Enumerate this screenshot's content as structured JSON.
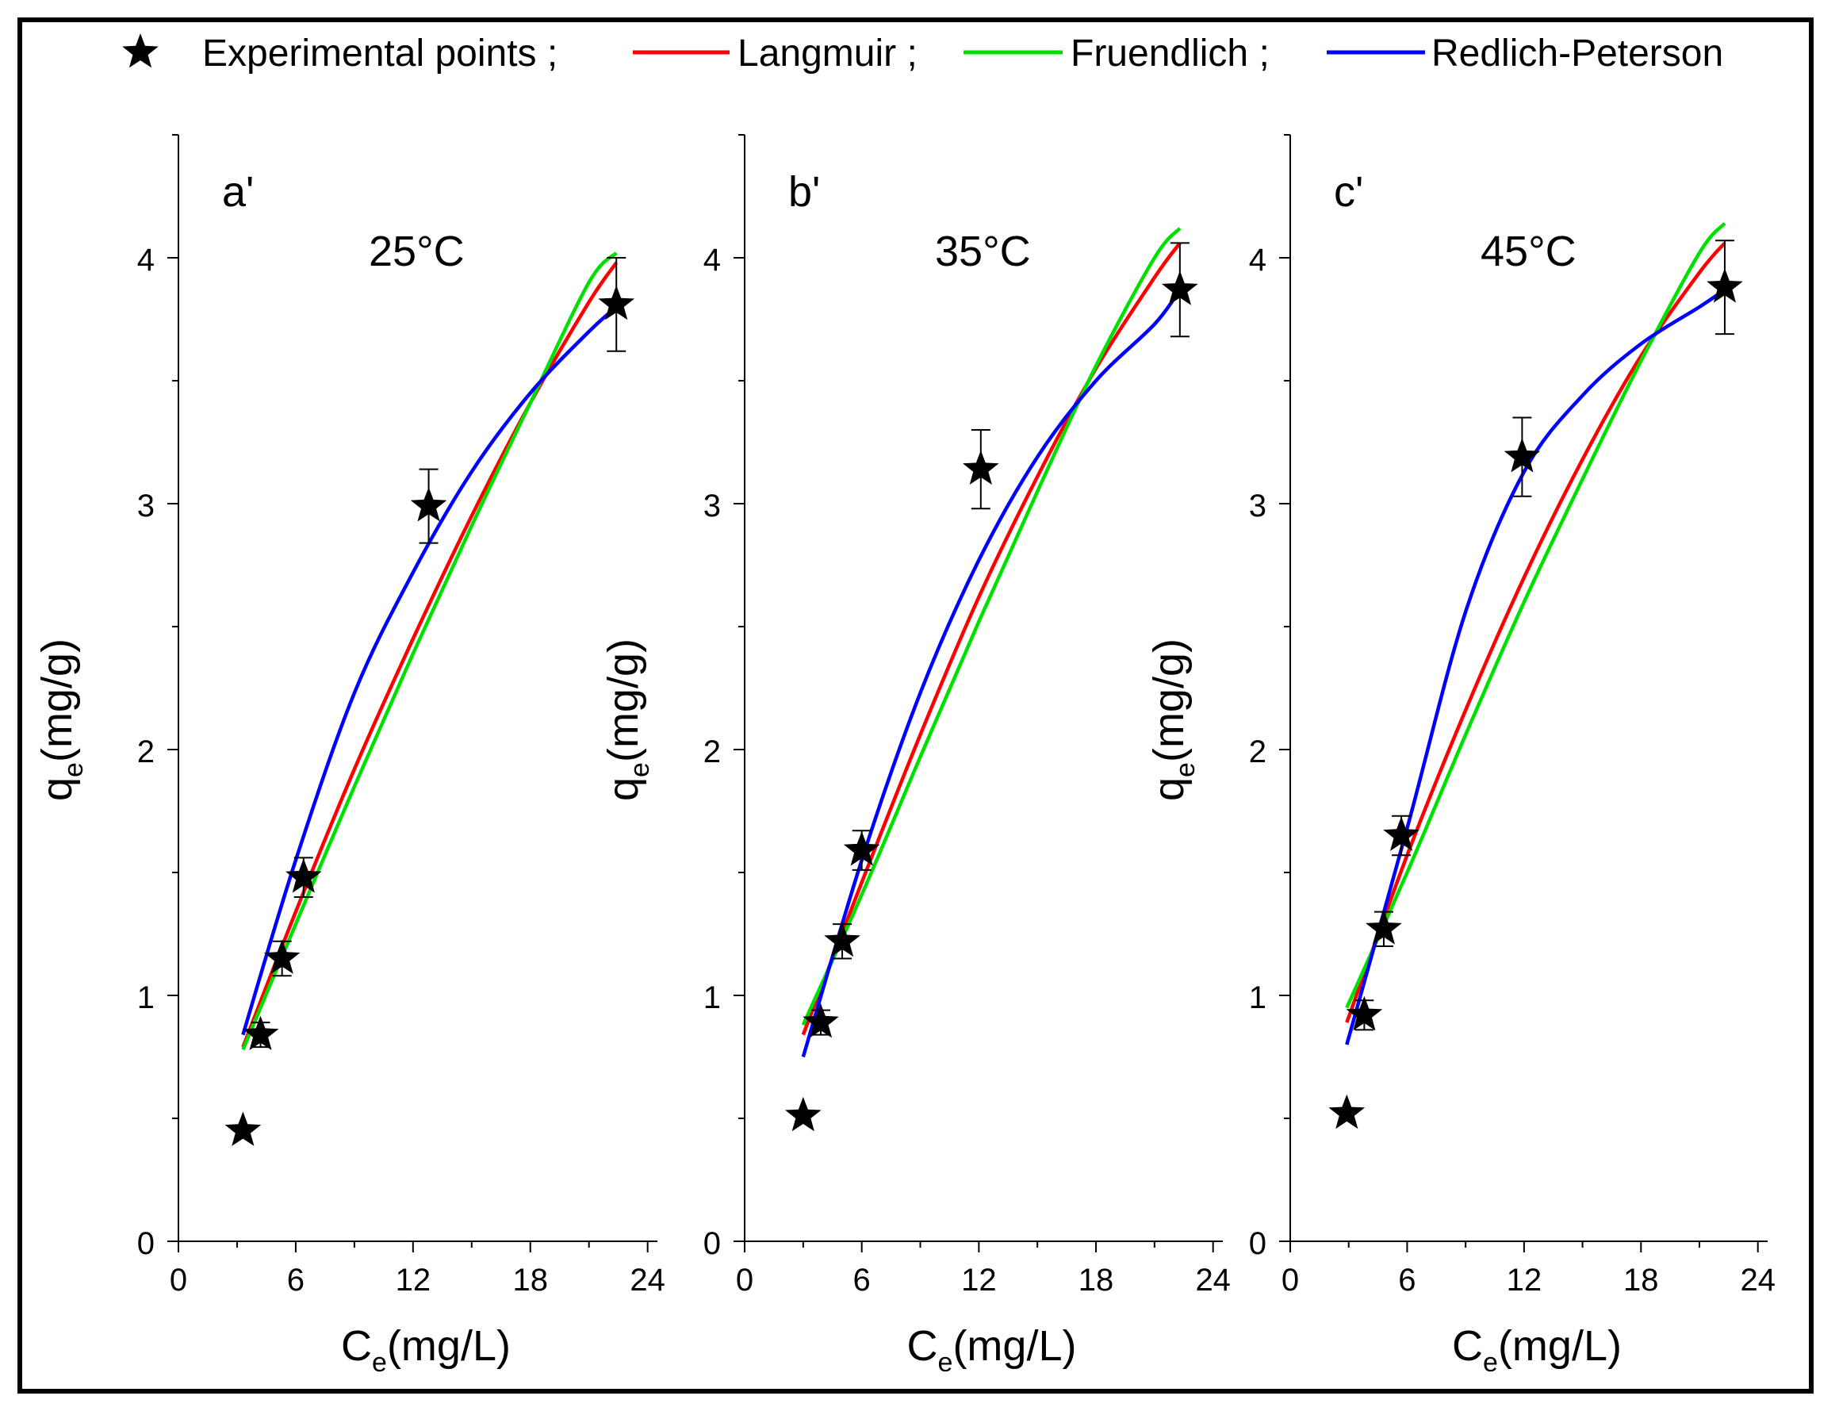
{
  "legend": {
    "items": [
      {
        "label": "Experimental points ;",
        "kind": "marker",
        "color": "#000000"
      },
      {
        "label": "Langmuir ;",
        "kind": "line",
        "color": "#ff0000"
      },
      {
        "label": "Fruendlich ;",
        "kind": "line",
        "color": "#00e000"
      },
      {
        "label": "Redlich-Peterson",
        "kind": "line",
        "color": "#0000ff"
      }
    ]
  },
  "colors": {
    "langmuir": "#ff0000",
    "freundlich": "#00e000",
    "redlich": "#0000ff",
    "points": "#000000"
  },
  "chart_data": [
    {
      "type": "scatter",
      "panel_label": "a'",
      "temperature_label": "25°C",
      "xlabel_main": "C",
      "xlabel_sub": "e",
      "xlabel_unit": "(mg/L)",
      "ylabel_main": "q",
      "ylabel_sub": "e",
      "ylabel_unit": "(mg/g)",
      "xlim": [
        0,
        24.5
      ],
      "ylim": [
        0,
        4.5
      ],
      "xticks": [
        0,
        6,
        12,
        18,
        24
      ],
      "yticks": [
        0,
        1,
        2,
        3,
        4
      ],
      "points": {
        "x": [
          3.3,
          4.2,
          5.3,
          6.4,
          12.8,
          22.4
        ],
        "y": [
          0.45,
          0.84,
          1.15,
          1.48,
          2.99,
          3.81
        ],
        "yerr": [
          0.02,
          0.05,
          0.07,
          0.08,
          0.15,
          0.19
        ]
      },
      "series": [
        {
          "name": "Langmuir",
          "x": [
            3.3,
            6,
            9,
            12,
            15,
            18,
            21,
            22.4
          ],
          "y": [
            0.79,
            1.34,
            1.92,
            2.45,
            2.95,
            3.41,
            3.82,
            3.98
          ]
        },
        {
          "name": "Fruendlich",
          "x": [
            3.3,
            6,
            9,
            12,
            15,
            18,
            21,
            22.4
          ],
          "y": [
            0.78,
            1.29,
            1.85,
            2.39,
            2.91,
            3.41,
            3.9,
            4.02
          ]
        },
        {
          "name": "Redlich-Peterson",
          "x": [
            3.3,
            6,
            9,
            12,
            15,
            18,
            21,
            22.4
          ],
          "y": [
            0.84,
            1.55,
            2.23,
            2.72,
            3.13,
            3.45,
            3.7,
            3.8
          ]
        }
      ]
    },
    {
      "type": "scatter",
      "panel_label": "b'",
      "temperature_label": "35°C",
      "xlabel_main": "C",
      "xlabel_sub": "e",
      "xlabel_unit": "(mg/L)",
      "ylabel_main": "q",
      "ylabel_sub": "e",
      "ylabel_unit": "(mg/g)",
      "xlim": [
        0,
        24.5
      ],
      "ylim": [
        0,
        4.5
      ],
      "xticks": [
        0,
        6,
        12,
        18,
        24
      ],
      "yticks": [
        0,
        1,
        2,
        3,
        4
      ],
      "points": {
        "x": [
          3.0,
          3.9,
          5.0,
          6.0,
          12.1,
          22.3
        ],
        "y": [
          0.51,
          0.89,
          1.22,
          1.59,
          3.14,
          3.87
        ],
        "yerr": [
          0.02,
          0.05,
          0.07,
          0.08,
          0.16,
          0.19
        ]
      },
      "series": [
        {
          "name": "Langmuir",
          "x": [
            3.0,
            6,
            9,
            12,
            15,
            18,
            21,
            22.3
          ],
          "y": [
            0.84,
            1.46,
            2.06,
            2.62,
            3.11,
            3.55,
            3.92,
            4.06
          ]
        },
        {
          "name": "Fruendlich",
          "x": [
            3.0,
            6,
            9,
            12,
            15,
            18,
            21,
            22.3
          ],
          "y": [
            0.88,
            1.41,
            1.97,
            2.52,
            3.05,
            3.56,
            4.0,
            4.12
          ]
        },
        {
          "name": "Redlich-Peterson",
          "x": [
            3.0,
            6,
            9,
            12,
            15,
            18,
            21,
            22.3
          ],
          "y": [
            0.75,
            1.55,
            2.23,
            2.77,
            3.19,
            3.5,
            3.73,
            3.87
          ]
        }
      ]
    },
    {
      "type": "scatter",
      "panel_label": "c'",
      "temperature_label": "45°C",
      "xlabel_main": "C",
      "xlabel_sub": "e",
      "xlabel_unit": "(mg/L)",
      "ylabel_main": "q",
      "ylabel_sub": "e",
      "ylabel_unit": "(mg/g)",
      "xlim": [
        0,
        24.5
      ],
      "ylim": [
        0,
        4.5
      ],
      "xticks": [
        0,
        6,
        12,
        18,
        24
      ],
      "yticks": [
        0,
        1,
        2,
        3,
        4
      ],
      "points": {
        "x": [
          2.9,
          3.8,
          4.8,
          5.7,
          11.9,
          22.3
        ],
        "y": [
          0.52,
          0.92,
          1.27,
          1.65,
          3.19,
          3.88
        ],
        "yerr": [
          0.02,
          0.06,
          0.07,
          0.08,
          0.16,
          0.19
        ]
      },
      "series": [
        {
          "name": "Langmuir",
          "x": [
            2.9,
            6,
            9,
            12,
            15,
            18,
            21,
            22.3
          ],
          "y": [
            0.89,
            1.57,
            2.16,
            2.7,
            3.18,
            3.6,
            3.94,
            4.06
          ]
        },
        {
          "name": "Fruendlich",
          "x": [
            2.9,
            6,
            9,
            12,
            15,
            18,
            21,
            22.3
          ],
          "y": [
            0.95,
            1.5,
            2.06,
            2.6,
            3.1,
            3.58,
            4.02,
            4.14
          ]
        },
        {
          "name": "Redlich-Peterson",
          "x": [
            2.9,
            6,
            9,
            12,
            15,
            18,
            21,
            22.3
          ],
          "y": [
            0.8,
            1.68,
            2.56,
            3.13,
            3.44,
            3.65,
            3.8,
            3.87
          ]
        }
      ]
    }
  ]
}
